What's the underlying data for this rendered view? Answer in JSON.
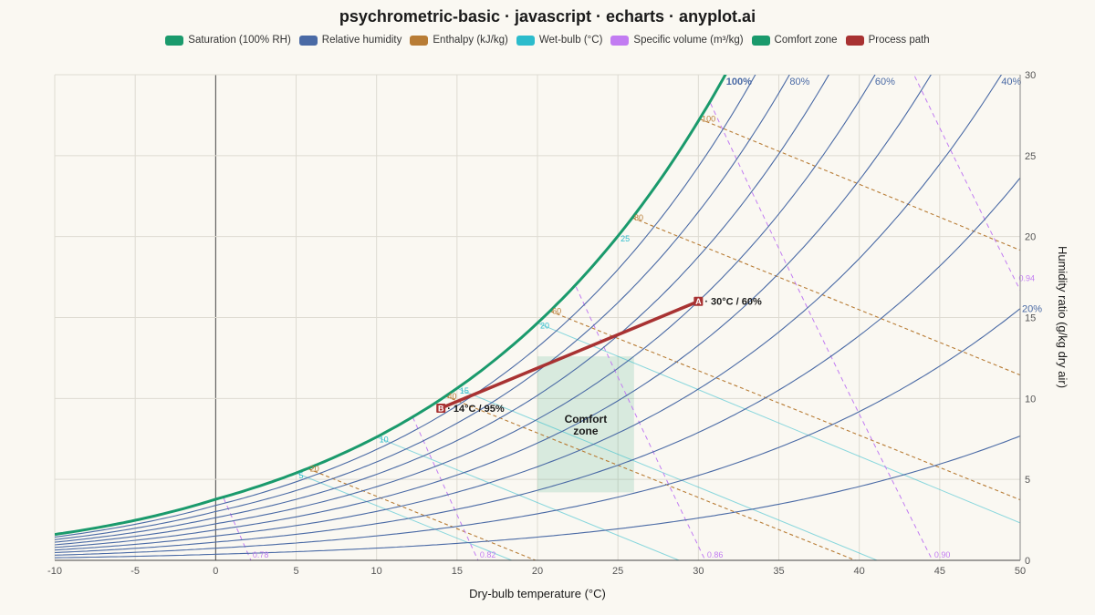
{
  "title": "psychrometric-basic · javascript · echarts · anyplot.ai",
  "colors": {
    "saturation": "#1a9a6c",
    "rh": "#4a6aa5",
    "enthalpy": "#b87c35",
    "wetbulb": "#2cbccc",
    "volume": "#c27cf2",
    "comfort": "#1a9a6c",
    "process": "#a83232"
  },
  "legend": [
    {
      "label": "Saturation (100% RH)",
      "color": "#1a9a6c"
    },
    {
      "label": "Relative humidity",
      "color": "#4a6aa5"
    },
    {
      "label": "Enthalpy (kJ/kg)",
      "color": "#b87c35"
    },
    {
      "label": "Wet-bulb (°C)",
      "color": "#2cbccc"
    },
    {
      "label": "Specific volume (m³/kg)",
      "color": "#c27cf2"
    },
    {
      "label": "Comfort zone",
      "color": "#1a9a6c"
    },
    {
      "label": "Process path",
      "color": "#a83232"
    }
  ],
  "chart_data": {
    "type": "line",
    "xlabel": "Dry-bulb temperature (°C)",
    "ylabel": "Humidity ratio (g/kg dry air)",
    "xlim": [
      -10,
      50
    ],
    "ylim": [
      0,
      30
    ],
    "x_ticks": [
      -10,
      -5,
      0,
      5,
      10,
      15,
      20,
      25,
      30,
      35,
      40,
      45,
      50
    ],
    "y_ticks": [
      0,
      5,
      10,
      15,
      20,
      25,
      30
    ],
    "grid": true,
    "legend_position": "top",
    "rh_curves": [
      10,
      20,
      30,
      40,
      50,
      60,
      70,
      80,
      90,
      100
    ],
    "rh_labels": [
      {
        "rh": 100,
        "text": "100%"
      },
      {
        "rh": 80,
        "text": "80%"
      },
      {
        "rh": 60,
        "text": "60%"
      },
      {
        "rh": 40,
        "text": "40%"
      },
      {
        "rh": 20,
        "text": "20%"
      }
    ],
    "enthalpy_lines": [
      {
        "h": 20,
        "label": "20"
      },
      {
        "h": 40,
        "label": "40"
      },
      {
        "h": 60,
        "label": "60"
      },
      {
        "h": 80,
        "label": "80"
      },
      {
        "h": 100,
        "label": "100"
      }
    ],
    "wetbulb_lines": [
      {
        "t": 5,
        "label": "5"
      },
      {
        "t": 10,
        "label": "10"
      },
      {
        "t": 15,
        "label": "15"
      },
      {
        "t": 20,
        "label": "20"
      },
      {
        "t": 25,
        "label": "25"
      }
    ],
    "volume_lines": [
      {
        "v": 0.78,
        "label": "0.78"
      },
      {
        "v": 0.82,
        "label": "0.82"
      },
      {
        "v": 0.86,
        "label": "0.86"
      },
      {
        "v": 0.9,
        "label": "0.90"
      },
      {
        "v": 0.94,
        "label": "0.94"
      }
    ],
    "comfort_zone": {
      "t_min": 20,
      "t_max": 26,
      "w_min": 4.2,
      "w_max": 12.6,
      "label_line1": "Comfort",
      "label_line2": "zone"
    },
    "process": {
      "points": [
        {
          "id": "A",
          "t": 30,
          "w": 16.0,
          "label": "· 30°C / 60%"
        },
        {
          "id": "B",
          "t": 14,
          "w": 9.4,
          "label": "· 14°C / 95%"
        }
      ]
    }
  }
}
